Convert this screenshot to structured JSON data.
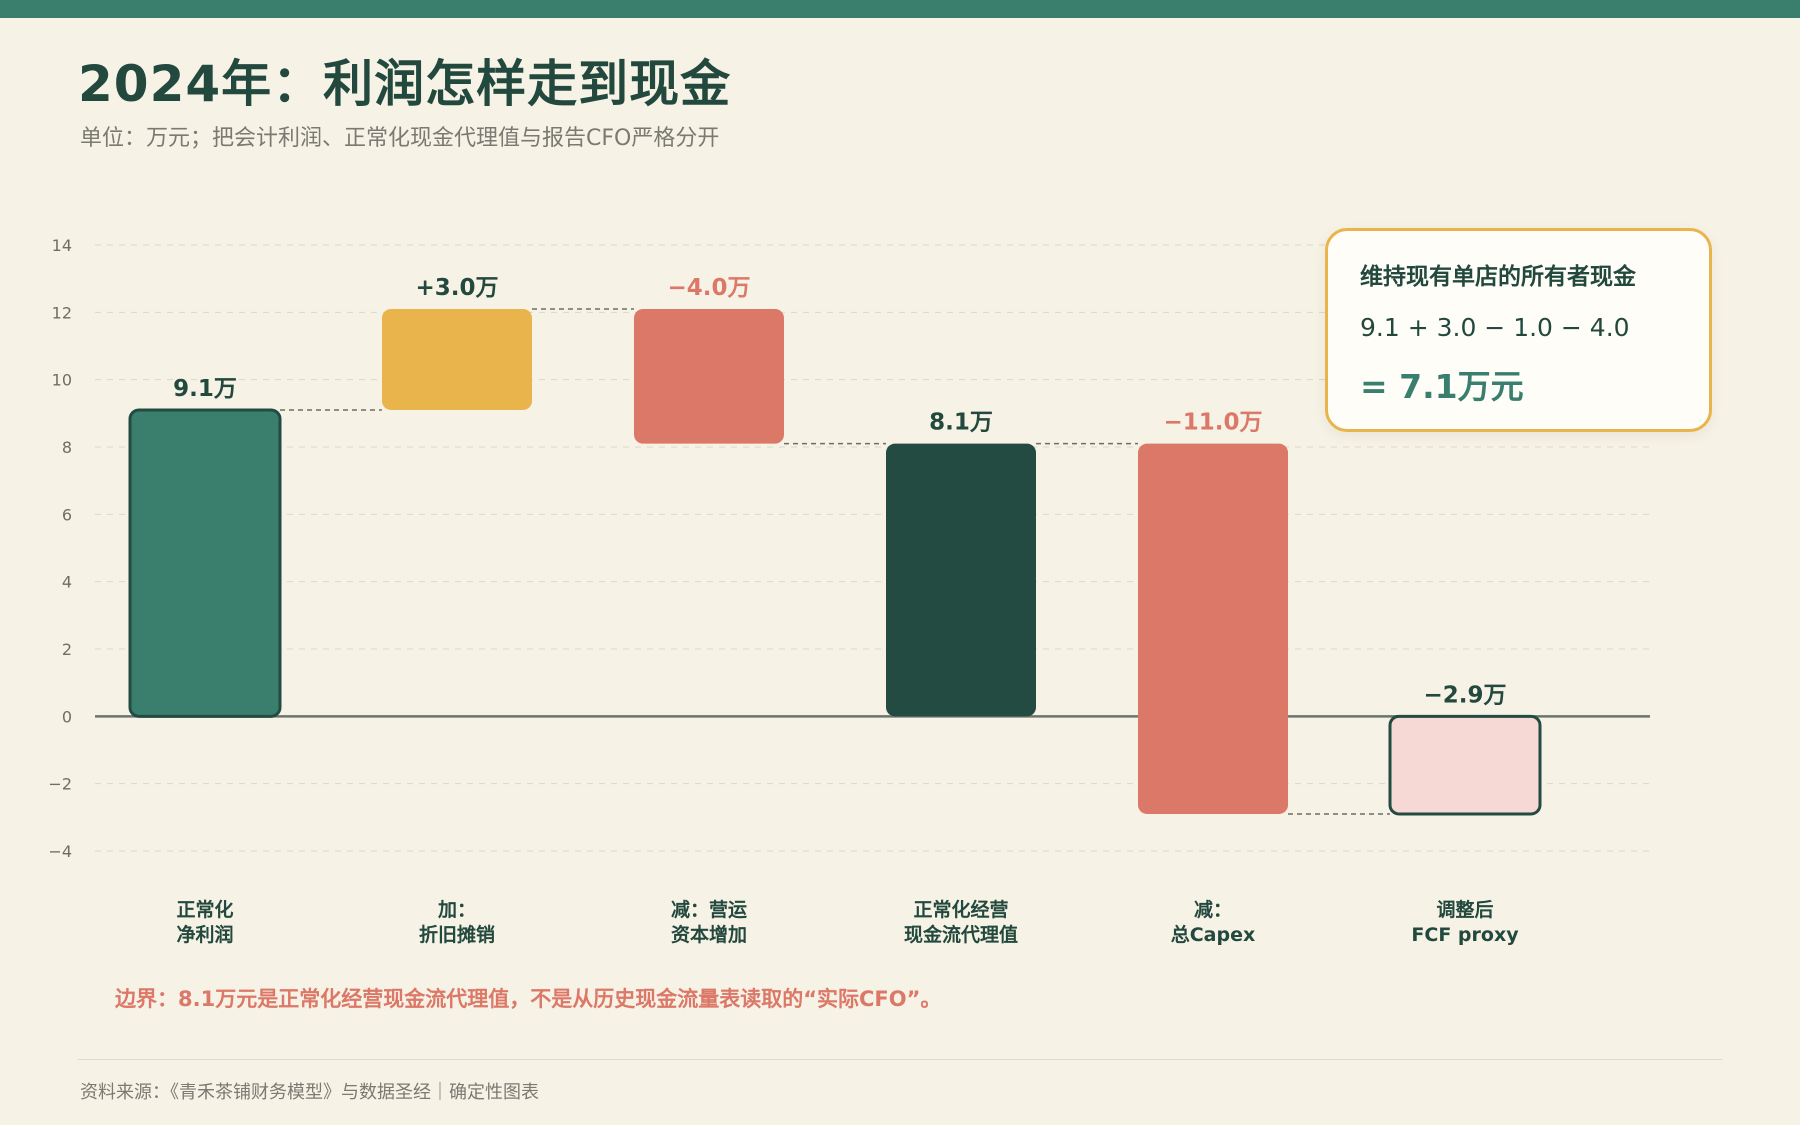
{
  "title": "2024年：利润怎样走到现金",
  "subtitle": "单位：万元；把会计利润、正常化现金代理值与报告CFO严格分开",
  "callout": {
    "title": "维持现有单店的所有者现金",
    "formula": "9.1 + 3.0 − 1.0 − 4.0",
    "result": "= 7.1万元"
  },
  "note": "边界：8.1万元是正常化经营现金流代理值，不是从历史现金流量表读取的“实际CFO”。",
  "source": "资料来源：《青禾茶铺财务模型》与数据圣经｜确定性图表",
  "colors": {
    "teal": "#3a7f6e",
    "dark_green": "#234b42",
    "yellow": "#e9b44c",
    "salmon": "#dc7867",
    "pink": "#f6d9d4",
    "axis": "#6b7570",
    "grid": "#d8d9cc",
    "label_dark": "#23493f"
  },
  "chart_data": {
    "type": "waterfall",
    "ylim": [
      -4,
      14
    ],
    "yticks": [
      -4,
      -2,
      0,
      2,
      4,
      6,
      8,
      10,
      12,
      14
    ],
    "grid": true,
    "bars": [
      {
        "category": [
          "正常化",
          "净利润"
        ],
        "start": 0,
        "end": 9.1,
        "kind": "total",
        "label": "9.1万",
        "fill": "#3a7f6e",
        "stroke": "#234b42",
        "label_color": "#23493f"
      },
      {
        "category": [
          "加：",
          "折旧摊销"
        ],
        "start": 9.1,
        "end": 12.1,
        "kind": "increase",
        "label": "+3.0万",
        "fill": "#e9b44c",
        "stroke": "none",
        "label_color": "#23493f"
      },
      {
        "category": [
          "减：营运",
          "资本增加"
        ],
        "start": 12.1,
        "end": 8.1,
        "kind": "decrease",
        "label": "−4.0万",
        "fill": "#dc7867",
        "stroke": "none",
        "label_color": "#dc7867"
      },
      {
        "category": [
          "正常化经营",
          "现金流代理值"
        ],
        "start": 0,
        "end": 8.1,
        "kind": "total",
        "label": "8.1万",
        "fill": "#234b42",
        "stroke": "none",
        "label_color": "#23493f"
      },
      {
        "category": [
          "减：",
          "总Capex"
        ],
        "start": 8.1,
        "end": -2.9,
        "kind": "decrease",
        "label": "−11.0万",
        "fill": "#dc7867",
        "stroke": "none",
        "label_color": "#dc7867"
      },
      {
        "category": [
          "调整后",
          "FCF proxy"
        ],
        "start": 0,
        "end": -2.9,
        "kind": "total",
        "label": "−2.9万",
        "fill": "#f6d9d4",
        "stroke": "#234b42",
        "label_color": "#23493f"
      }
    ]
  }
}
